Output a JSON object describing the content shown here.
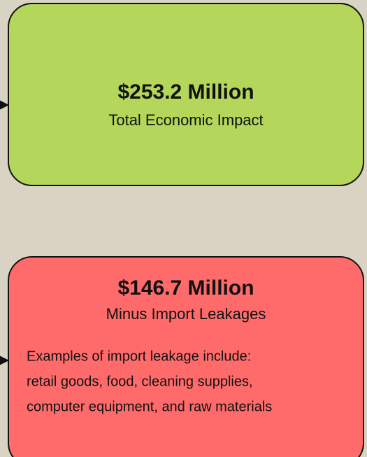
{
  "nodes": [
    {
      "title": "$253.2 Million",
      "subtitle": "Total Economic Impact"
    },
    {
      "title": "$146.7 Million",
      "subtitle": "Minus Import Leakages",
      "description": [
        "Examples of import leakage include:",
        "retail goods, food, cleaning supplies,",
        "computer equipment, and raw materials"
      ]
    }
  ]
}
